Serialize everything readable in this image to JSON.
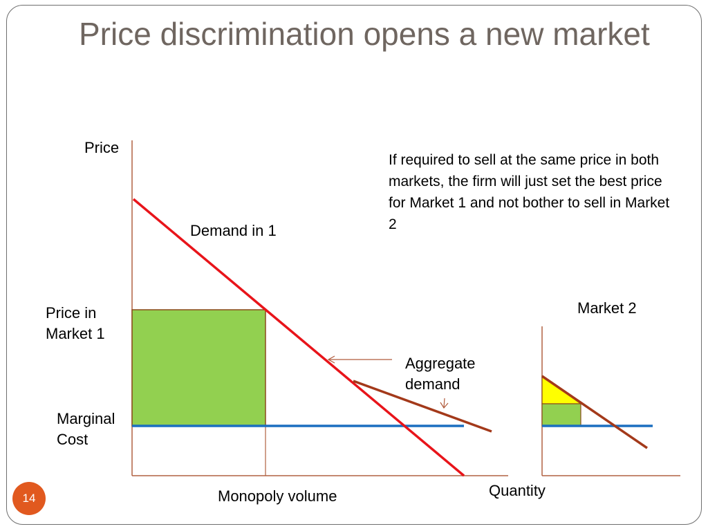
{
  "slide": {
    "title": "Price discrimination opens a new market",
    "page_number": "14",
    "note": "If required to sell at the same price in both markets, the firm will just set the best price for Market 1 and not bother to sell in Market 2"
  },
  "diagram": {
    "labels": {
      "y_axis": "Price",
      "x_axis": "Quantity",
      "demand_1": "Demand in 1",
      "price_market_1_line1": "Price in",
      "price_market_1_line2": "Market 1",
      "marginal_cost_line1": "Marginal",
      "marginal_cost_line2": "Cost",
      "monopoly_volume": "Monopoly volume",
      "aggregate_line1": "Aggregate",
      "aggregate_line2": "demand",
      "market_2": "Market 2"
    },
    "colors": {
      "axis": "#b06040",
      "demand_1": "#e8141a",
      "aggregate_demand": "#a3391a",
      "marginal_cost": "#1b6fc0",
      "profit_fill": "#92d050",
      "profit_border": "#8b4a1c",
      "consumer_surplus_fill": "#ffff00",
      "arrow": "#b05a3a",
      "badge": "#e1591f"
    }
  }
}
